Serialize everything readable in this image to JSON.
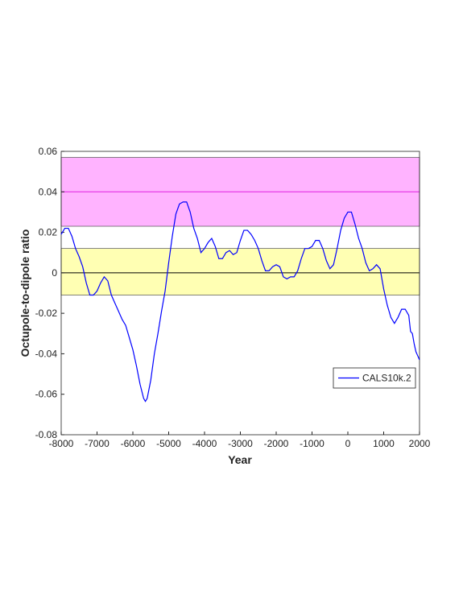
{
  "chart_data": {
    "type": "line",
    "xlabel": "Year",
    "ylabel": "Octupole-to-dipole ratio",
    "xlim": [
      -8000,
      2000
    ],
    "xticks": [
      -8000,
      -7000,
      -6000,
      -5000,
      -4000,
      -3000,
      -2000,
      -1000,
      0,
      1000,
      2000
    ],
    "ylim": [
      -0.08,
      0.06
    ],
    "yticks": [
      -0.08,
      -0.06,
      -0.04,
      -0.02,
      0,
      0.02,
      0.04,
      0.06
    ],
    "legend": "lower right",
    "bands": [
      {
        "from": 0.023,
        "to": 0.057,
        "center": 0.04,
        "color": "#ffb3ff",
        "line_color": "#e020e0"
      },
      {
        "from": -0.011,
        "to": 0.012,
        "center": 0,
        "color": "#ffffb3",
        "line_color": "#000000"
      }
    ],
    "x": [
      -8000,
      -7900,
      -7800,
      -7700,
      -7600,
      -7500,
      -7400,
      -7300,
      -7200,
      -7100,
      -7000,
      -6900,
      -6800,
      -6700,
      -6600,
      -6500,
      -6400,
      -6300,
      -6200,
      -6100,
      -6000,
      -5900,
      -5800,
      -5700,
      -5650,
      -5600,
      -5500,
      -5400,
      -5300,
      -5200,
      -5100,
      -5000,
      -4900,
      -4800,
      -4700,
      -4600,
      -4500,
      -4400,
      -4300,
      -4200,
      -4100,
      -4000,
      -3900,
      -3800,
      -3700,
      -3600,
      -3500,
      -3400,
      -3300,
      -3200,
      -3100,
      -3000,
      -2900,
      -2800,
      -2700,
      -2600,
      -2500,
      -2400,
      -2300,
      -2200,
      -2100,
      -2000,
      -1900,
      -1800,
      -1700,
      -1600,
      -1500,
      -1400,
      -1300,
      -1200,
      -1100,
      -1000,
      -900,
      -800,
      -700,
      -600,
      -500,
      -400,
      -300,
      -200,
      -100,
      0,
      100,
      200,
      300,
      400,
      500,
      600,
      700,
      800,
      900,
      1000,
      1100,
      1200,
      1300,
      1400,
      1500,
      1600,
      1700,
      1750,
      1800,
      1850,
      1900,
      1950,
      2000
    ],
    "series": [
      {
        "name": "CALS10k.2",
        "color": "#0000ff",
        "values": [
          0.019,
          0.022,
          0.022,
          0.018,
          0.012,
          0.008,
          0.003,
          -0.005,
          -0.011,
          -0.011,
          -0.009,
          -0.005,
          -0.002,
          -0.004,
          -0.011,
          -0.015,
          -0.019,
          -0.023,
          -0.026,
          -0.032,
          -0.038,
          -0.046,
          -0.055,
          -0.062,
          -0.0635,
          -0.062,
          -0.053,
          -0.04,
          -0.03,
          -0.019,
          -0.009,
          0.005,
          0.018,
          0.029,
          0.034,
          0.035,
          0.035,
          0.03,
          0.022,
          0.017,
          0.01,
          0.012,
          0.015,
          0.017,
          0.013,
          0.007,
          0.007,
          0.01,
          0.011,
          0.009,
          0.01,
          0.016,
          0.021,
          0.021,
          0.019,
          0.016,
          0.012,
          0.006,
          0.001,
          0.001,
          0.003,
          0.004,
          0.003,
          -0.002,
          -0.003,
          -0.002,
          -0.002,
          0.001,
          0.007,
          0.012,
          0.012,
          0.013,
          0.016,
          0.016,
          0.012,
          0.006,
          0.002,
          0.004,
          0.012,
          0.021,
          0.027,
          0.03,
          0.03,
          0.024,
          0.017,
          0.012,
          0.005,
          0.001,
          0.002,
          0.004,
          0.002,
          -0.008,
          -0.016,
          -0.022,
          -0.025,
          -0.022,
          -0.018,
          -0.018,
          -0.021,
          -0.029,
          -0.03,
          -0.035,
          -0.039,
          -0.041,
          -0.043
        ]
      }
    ]
  }
}
